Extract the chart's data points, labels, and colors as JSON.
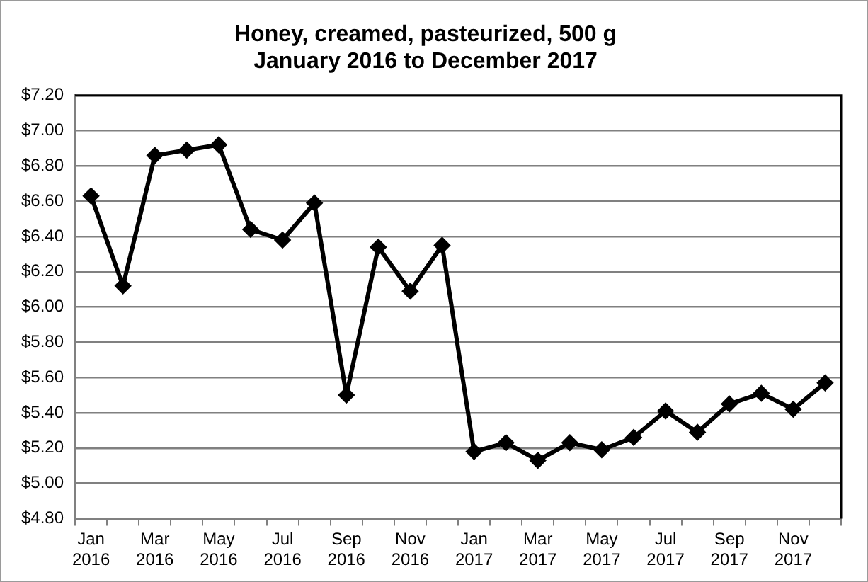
{
  "chart_data": {
    "type": "line",
    "title": "Honey, creamed, pasteurized, 500 g",
    "subtitle": "January 2016 to December 2017",
    "categories": [
      "Jan 2016",
      null,
      "Mar 2016",
      null,
      "May 2016",
      null,
      "Jul 2016",
      null,
      "Sep 2016",
      null,
      "Nov 2016",
      null,
      "Jan 2017",
      null,
      "Mar 2017",
      null,
      "May 2017",
      null,
      "Jul 2017",
      null,
      "Sep 2017",
      null,
      "Nov 2017",
      null
    ],
    "series": [
      {
        "color": "#000000",
        "values": [
          6.63,
          6.12,
          6.86,
          6.89,
          6.92,
          6.44,
          6.38,
          6.59,
          5.5,
          6.34,
          6.09,
          6.35,
          5.18,
          5.23,
          5.13,
          5.23,
          5.19,
          5.26,
          5.41,
          5.29,
          5.45,
          5.51,
          5.42,
          5.57
        ]
      }
    ],
    "ylim": [
      4.8,
      7.2
    ],
    "yticks": [
      {
        "value": 4.8,
        "label": "$4.80"
      },
      {
        "value": 5.0,
        "label": "$5.00"
      },
      {
        "value": 5.2,
        "label": "$5.20"
      },
      {
        "value": 5.4,
        "label": "$5.40"
      },
      {
        "value": 5.6,
        "label": "$5.60"
      },
      {
        "value": 5.8,
        "label": "$5.80"
      },
      {
        "value": 6.0,
        "label": "$6.00"
      },
      {
        "value": 6.2,
        "label": "$6.20"
      },
      {
        "value": 6.4,
        "label": "$6.40"
      },
      {
        "value": 6.6,
        "label": "$6.60"
      },
      {
        "value": 6.8,
        "label": "$6.80"
      },
      {
        "value": 7.0,
        "label": "$7.00"
      },
      {
        "value": 7.2,
        "label": "$7.20"
      }
    ],
    "grid": "y",
    "legend": false,
    "marker": "diamond",
    "line_style": "solid"
  }
}
